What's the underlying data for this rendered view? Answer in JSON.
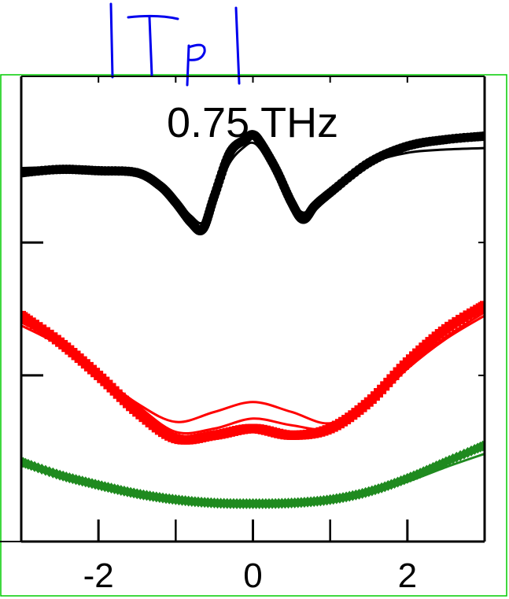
{
  "chart_data": {
    "type": "line",
    "annotation": "0.75 THz",
    "handwritten_note": "|Tp|",
    "xlabel": "",
    "ylabel": "",
    "xlim": [
      -3,
      3
    ],
    "x_ticks": [
      -2,
      0,
      2
    ],
    "x_ticks_minor": [
      -3,
      -2,
      -1,
      0,
      1,
      2,
      3
    ],
    "grid": false,
    "legend": "none",
    "colors": {
      "black": "#000000",
      "red": "#ff0000",
      "green": "#1f8a1f",
      "frame": "#00cc00"
    },
    "series": [
      {
        "color": "#000000",
        "marker": "circle",
        "role": "measured",
        "x": [
          -3.0,
          -2.5,
          -2.0,
          -1.5,
          -1.2,
          -1.0,
          -0.8,
          -0.65,
          -0.5,
          -0.3,
          -0.1,
          0.0,
          0.1,
          0.3,
          0.5,
          0.65,
          0.8,
          1.0,
          1.5,
          2.0,
          2.5,
          3.0
        ],
        "y": [
          0.855,
          0.86,
          0.858,
          0.855,
          0.835,
          0.81,
          0.78,
          0.77,
          0.82,
          0.885,
          0.905,
          0.912,
          0.9,
          0.86,
          0.81,
          0.785,
          0.805,
          0.825,
          0.87,
          0.895,
          0.905,
          0.91
        ]
      },
      {
        "color": "#000000",
        "marker": "none",
        "role": "fit",
        "x": [
          -3.0,
          -2.5,
          -2.0,
          -1.5,
          -1.2,
          -1.0,
          -0.8,
          -0.65,
          -0.5,
          -0.3,
          -0.1,
          0.0,
          0.1,
          0.3,
          0.5,
          0.65,
          0.8,
          1.0,
          1.5,
          2.0,
          2.5,
          3.0
        ],
        "y": [
          0.862,
          0.863,
          0.86,
          0.852,
          0.838,
          0.815,
          0.79,
          0.78,
          0.815,
          0.87,
          0.895,
          0.9,
          0.89,
          0.855,
          0.815,
          0.795,
          0.808,
          0.83,
          0.868,
          0.885,
          0.89,
          0.892
        ]
      },
      {
        "color": "#ff0000",
        "marker": "square",
        "role": "measured",
        "x": [
          -3.0,
          -2.5,
          -2.0,
          -1.5,
          -1.0,
          -0.5,
          0.0,
          0.5,
          1.0,
          1.5,
          2.0,
          2.5,
          3.0
        ],
        "y": [
          0.64,
          0.6,
          0.55,
          0.495,
          0.455,
          0.46,
          0.47,
          0.46,
          0.47,
          0.51,
          0.57,
          0.62,
          0.655
        ]
      },
      {
        "color": "#ff0000",
        "marker": "none",
        "role": "fit",
        "x": [
          -3.0,
          -2.5,
          -2.0,
          -1.5,
          -1.0,
          -0.5,
          0.0,
          0.5,
          1.0,
          1.5,
          2.0,
          2.5,
          3.0
        ],
        "y": [
          0.625,
          0.595,
          0.55,
          0.505,
          0.465,
          0.47,
          0.485,
          0.475,
          0.47,
          0.505,
          0.56,
          0.605,
          0.64
        ]
      },
      {
        "color": "#ff0000",
        "marker": "none",
        "role": "fit",
        "x": [
          -3.0,
          -2.5,
          -2.0,
          -1.5,
          -1.0,
          -0.5,
          0.0,
          0.5,
          1.0,
          1.5,
          2.0,
          2.5,
          3.0
        ],
        "y": [
          0.63,
          0.598,
          0.552,
          0.508,
          0.48,
          0.495,
          0.51,
          0.495,
          0.478,
          0.508,
          0.562,
          0.608,
          0.645
        ]
      },
      {
        "color": "#1f8a1f",
        "marker": "diamond",
        "role": "measured",
        "x": [
          -3.0,
          -2.5,
          -2.0,
          -1.5,
          -1.0,
          -0.5,
          0.0,
          0.5,
          1.0,
          1.5,
          2.0,
          2.5,
          3.0
        ],
        "y": [
          0.42,
          0.4,
          0.385,
          0.372,
          0.363,
          0.358,
          0.357,
          0.358,
          0.363,
          0.375,
          0.395,
          0.42,
          0.445
        ]
      },
      {
        "color": "#1f8a1f",
        "marker": "none",
        "role": "fit",
        "x": [
          -3.0,
          -2.5,
          -2.0,
          -1.5,
          -1.0,
          -0.5,
          0.0,
          0.5,
          1.0,
          1.5,
          2.0,
          2.5,
          3.0
        ],
        "y": [
          0.415,
          0.398,
          0.383,
          0.37,
          0.362,
          0.357,
          0.356,
          0.357,
          0.362,
          0.373,
          0.39,
          0.412,
          0.432
        ]
      }
    ]
  }
}
